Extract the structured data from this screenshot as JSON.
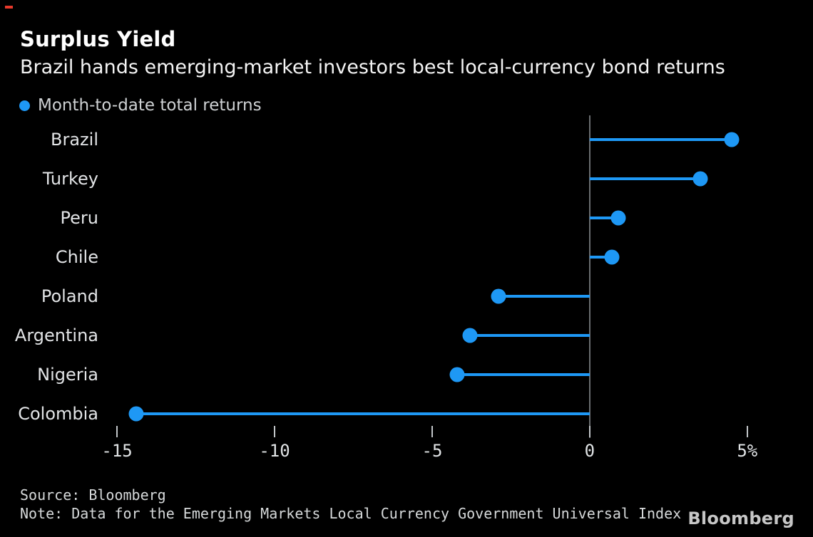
{
  "page": {
    "background": "#000000",
    "red_mark_color": "#e8392b"
  },
  "header": {
    "title": "Surplus Yield",
    "subtitle": "Brazil hands emerging-market investors best local-currency bond returns"
  },
  "legend": {
    "label": "Month-to-date total returns",
    "marker_color": "#1e98f5"
  },
  "chart_data": {
    "type": "lollipop",
    "orientation": "horizontal",
    "series_name": "Month-to-date total returns",
    "unit": "%",
    "categories": [
      "Brazil",
      "Turkey",
      "Peru",
      "Chile",
      "Poland",
      "Argentina",
      "Nigeria",
      "Colombia"
    ],
    "values": [
      4.5,
      3.5,
      0.9,
      0.7,
      -2.9,
      -3.8,
      -4.2,
      -14.4
    ],
    "baseline": 0,
    "xlim": [
      -15.5,
      6
    ],
    "ticks": [
      {
        "value": -15,
        "label": "-15"
      },
      {
        "value": -10,
        "label": "-10"
      },
      {
        "value": -5,
        "label": "-5"
      },
      {
        "value": 0,
        "label": "0"
      },
      {
        "value": 5,
        "label": "5%"
      }
    ],
    "grid": false,
    "legend_position": "top-left",
    "colors": {
      "marker": "#1e98f5",
      "stem": "#1e98f5",
      "zero_line": "#6a6d70",
      "tick": "#c2c6c9"
    }
  },
  "footer": {
    "source": "Source: Bloomberg",
    "note": "Note: Data for the Emerging Markets Local Currency Government Universal Index",
    "brand": "Bloomberg"
  }
}
